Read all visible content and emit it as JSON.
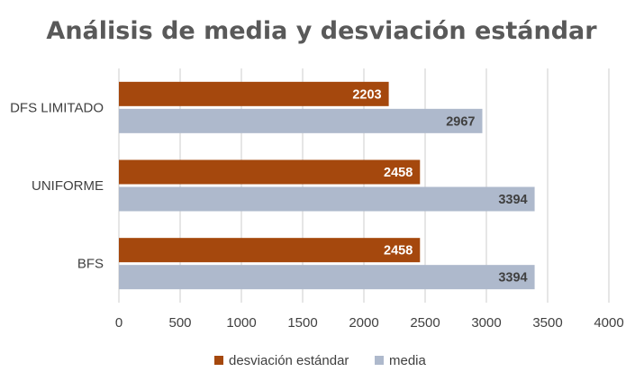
{
  "chart_data": {
    "type": "bar",
    "orientation": "horizontal",
    "title": "Análisis de media y desviación estándar",
    "categories": [
      "DFS LIMITADO",
      "UNIFORME",
      "BFS"
    ],
    "series": [
      {
        "name": "desviación estándar",
        "values": [
          2203,
          2458,
          2458
        ],
        "color": "#A5480D",
        "label_color": "#ffffff"
      },
      {
        "name": "media",
        "values": [
          2967,
          3394,
          3394
        ],
        "color": "#AEB9CC",
        "label_color": "#404040"
      }
    ],
    "xlim": [
      0,
      4000
    ],
    "xticks": [
      "0",
      "500",
      "1000",
      "1500",
      "2000",
      "2500",
      "3000",
      "3500",
      "4000"
    ],
    "grid": true,
    "legend": "bottom",
    "colors": {
      "gridline": "#D9D9D9",
      "text": "#404040",
      "title": "#595959"
    }
  }
}
